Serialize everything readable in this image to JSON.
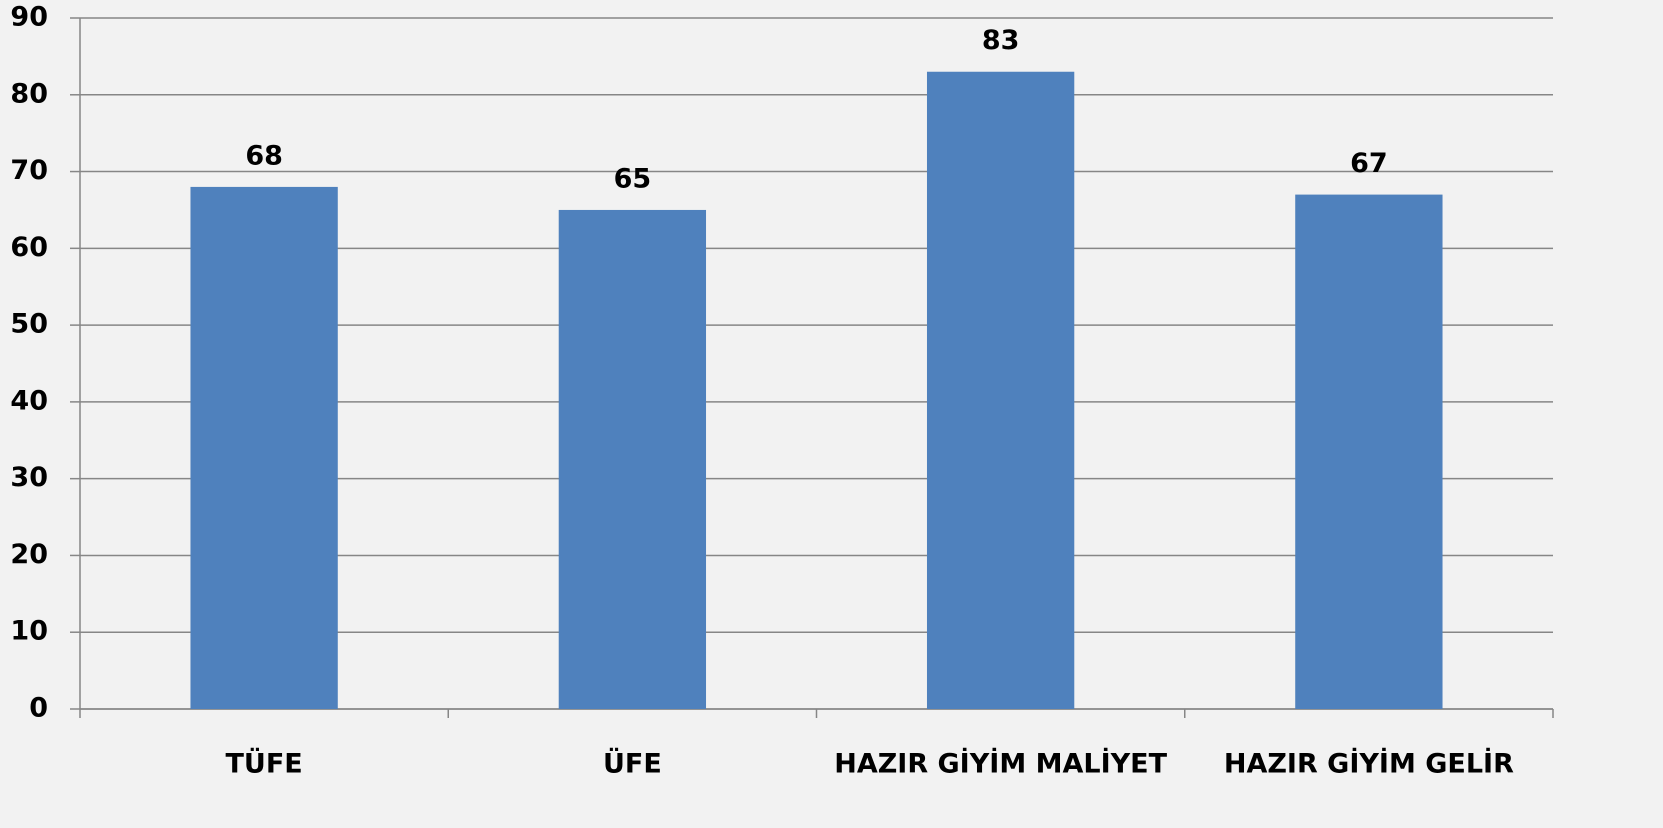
{
  "chart_data": {
    "type": "bar",
    "categories": [
      "TÜFE",
      "ÜFE",
      "HAZIR GİYİM MALİYET",
      "HAZIR GİYİM GELİR"
    ],
    "values": [
      68,
      65,
      83,
      67
    ],
    "color": "#4f81bd",
    "ylim": [
      0,
      90
    ],
    "yticks": [
      0,
      10,
      20,
      30,
      40,
      50,
      60,
      70,
      80,
      90
    ],
    "grid": true
  }
}
